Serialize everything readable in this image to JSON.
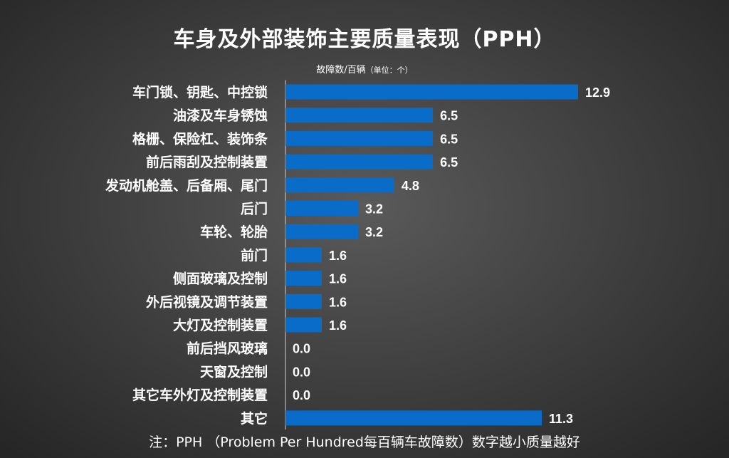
{
  "colors": {
    "bar": "#0a6cc9",
    "text": "#ffffff",
    "axis": "#d0d0d0"
  },
  "chart_data": {
    "type": "bar",
    "orientation": "horizontal",
    "title": "车身及外部装饰主要质量表现（PPH）",
    "subtitle_main": "故障数/百辆",
    "subtitle_unit": "（单位：个）",
    "note": "注：PPH （Problem Per Hundred每百辆车故障数）数字越小质量越好",
    "categories": [
      "车门锁、钥匙、中控锁",
      "油漆及车身锈蚀",
      "格栅、保险杠、装饰条",
      "前后雨刮及控制装置",
      "发动机舱盖、后备厢、尾门",
      "后门",
      "车轮、轮胎",
      "前门",
      "侧面玻璃及控制",
      "外后视镜及调节装置",
      "大灯及控制装置",
      "前后挡风玻璃",
      "天窗及控制",
      "其它车外灯及控制装置",
      "其它"
    ],
    "values": [
      12.9,
      6.5,
      6.5,
      6.5,
      4.8,
      3.2,
      3.2,
      1.6,
      1.6,
      1.6,
      1.6,
      0.0,
      0.0,
      0.0,
      11.3
    ],
    "value_labels": [
      "12.9",
      "6.5",
      "6.5",
      "6.5",
      "4.8",
      "3.2",
      "3.2",
      "1.6",
      "1.6",
      "1.6",
      "1.6",
      "0.0",
      "0.0",
      "0.0",
      "11.3"
    ],
    "xlim": [
      0,
      12.9
    ],
    "grid": false,
    "legend": "none"
  }
}
